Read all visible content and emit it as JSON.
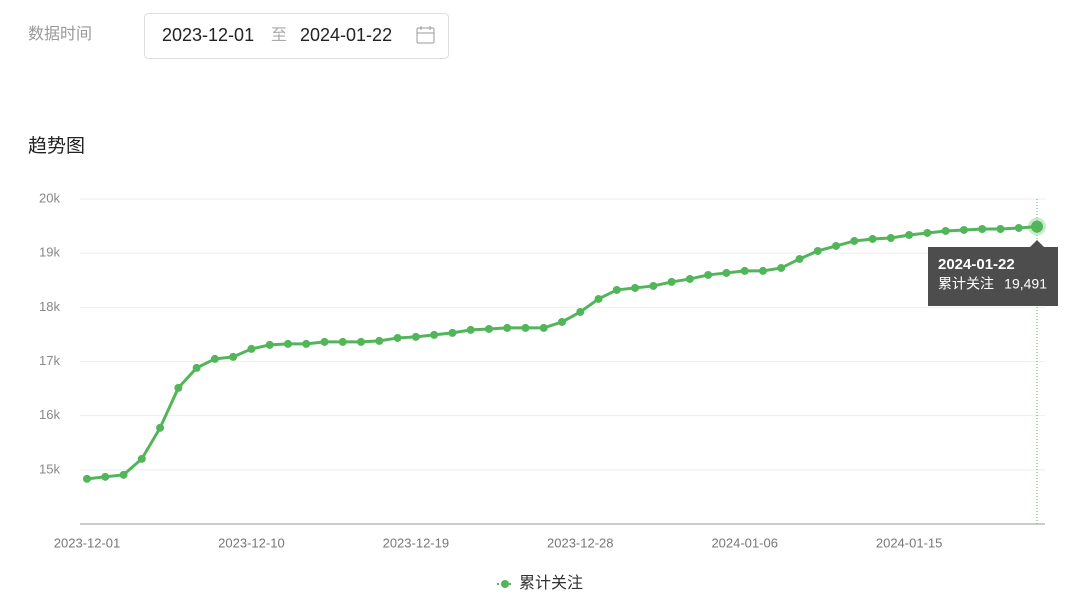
{
  "filter": {
    "label": "数据时间",
    "start": "2023-12-01",
    "separator": "至",
    "end": "2024-01-22"
  },
  "section_title": "趋势图",
  "chart_data": {
    "type": "line",
    "x": [
      "2023-12-01",
      null,
      null,
      null,
      null,
      null,
      null,
      null,
      null,
      "2023-12-10",
      null,
      null,
      null,
      null,
      null,
      null,
      null,
      null,
      "2023-12-19",
      null,
      null,
      null,
      null,
      null,
      null,
      null,
      null,
      "2023-12-28",
      null,
      null,
      null,
      null,
      null,
      null,
      null,
      null,
      "2024-01-06",
      null,
      null,
      null,
      null,
      null,
      null,
      null,
      null,
      "2024-01-15",
      null,
      null,
      null,
      null,
      null,
      null,
      null
    ],
    "series": [
      {
        "name": "累计关注",
        "color": "#52b55a",
        "values": [
          14834,
          14871,
          14908,
          15203,
          15775,
          16513,
          16882,
          17048,
          17085,
          17232,
          17306,
          17325,
          17325,
          17362,
          17362,
          17362,
          17380,
          17435,
          17454,
          17491,
          17528,
          17583,
          17601,
          17620,
          17620,
          17620,
          17730,
          17915,
          18155,
          18321,
          18358,
          18395,
          18469,
          18524,
          18598,
          18635,
          18672,
          18672,
          18727,
          18893,
          19041,
          19133,
          19225,
          19262,
          19280,
          19336,
          19373,
          19410,
          19428,
          19446,
          19446,
          19465,
          19491
        ]
      }
    ],
    "ylim": [
      14000,
      20000
    ],
    "yticks": [
      {
        "value": 15000,
        "label": "15k"
      },
      {
        "value": 16000,
        "label": "16k"
      },
      {
        "value": 17000,
        "label": "17k"
      },
      {
        "value": 18000,
        "label": "18k"
      },
      {
        "value": 19000,
        "label": "19k"
      },
      {
        "value": 20000,
        "label": "20k"
      }
    ],
    "grid": true,
    "tooltip": {
      "title": "2024-01-22",
      "label": "19,491"
    }
  }
}
